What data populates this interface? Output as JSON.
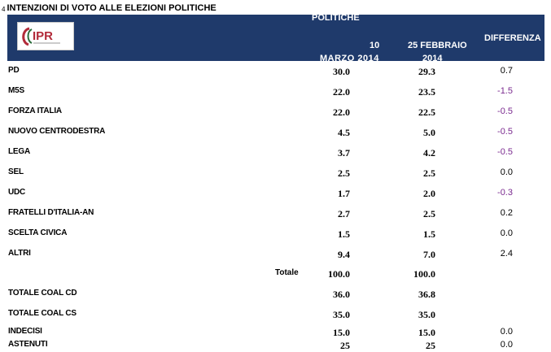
{
  "page_number": "4",
  "title": "INTENZIONI DI VOTO ALLE ELEZIONI POLITICHE",
  "header": {
    "section": "POLITICHE",
    "col1_line1": "10",
    "col1_line2": "MARZO 2014",
    "col2_line1": "25 FEBBRAIO",
    "col2_line2": "2014",
    "col3": "DIFFERENZA",
    "logo_text": "IPR"
  },
  "colors": {
    "header_bg": "#1f3a6b",
    "negative": "#7a2a8f"
  },
  "rows": [
    {
      "label": "PD",
      "v1": "30.0",
      "v2": "29.3",
      "diff": "0.7"
    },
    {
      "label": "M5S",
      "v1": "22.0",
      "v2": "23.5",
      "diff": "-1.5"
    },
    {
      "label": "FORZA ITALIA",
      "v1": "22.0",
      "v2": "22.5",
      "diff": "-0.5"
    },
    {
      "label": "NUOVO CENTRODESTRA",
      "v1": "4.5",
      "v2": "5.0",
      "diff": "-0.5"
    },
    {
      "label": "LEGA",
      "v1": "3.7",
      "v2": "4.2",
      "diff": "-0.5"
    },
    {
      "label": "SEL",
      "v1": "2.5",
      "v2": "2.5",
      "diff": "0.0"
    },
    {
      "label": "UDC",
      "v1": "1.7",
      "v2": "2.0",
      "diff": "-0.3"
    },
    {
      "label": "FRATELLI D'ITALIA-AN",
      "v1": "2.7",
      "v2": "2.5",
      "diff": "0.2"
    },
    {
      "label": "SCELTA CIVICA",
      "v1": "1.5",
      "v2": "1.5",
      "diff": "0.0"
    },
    {
      "label": "ALTRI",
      "v1": "9.4",
      "v2": "7.0",
      "diff": "2.4"
    }
  ],
  "totale": {
    "label": "Totale",
    "v1": "100.0",
    "v2": "100.0"
  },
  "summary_rows": [
    {
      "label": "TOTALE COAL CD",
      "v1": "36.0",
      "v2": "36.8",
      "diff": ""
    },
    {
      "label": "TOTALE COAL CS",
      "v1": "35.0",
      "v2": "35.0",
      "diff": ""
    },
    {
      "label": "INDECISI",
      "v1": "15.0",
      "v2": "15.0",
      "diff": "0.0"
    },
    {
      "label": "ASTENUTI",
      "v1": "25",
      "v2": "25",
      "diff": "0.0"
    }
  ]
}
